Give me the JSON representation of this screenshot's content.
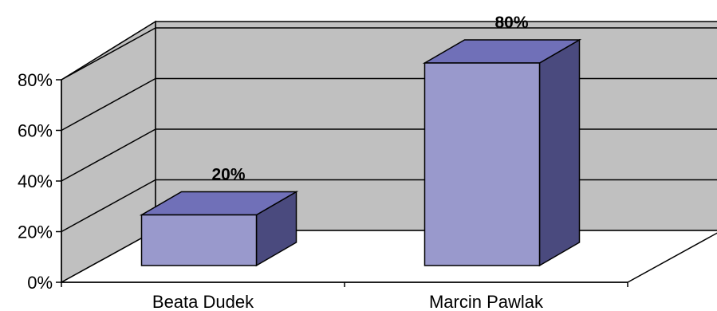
{
  "chart_data": {
    "type": "bar",
    "style": "3d-column",
    "categories": [
      "Beata Dudek",
      "Marcin Pawlak"
    ],
    "values": [
      20,
      80
    ],
    "data_labels": [
      "20%",
      "80%"
    ],
    "y_ticks": [
      0,
      20,
      40,
      60,
      80
    ],
    "y_tick_labels": [
      "0%",
      "20%",
      "40%",
      "60%",
      "80%"
    ],
    "ylim": [
      0,
      80
    ],
    "grid": true,
    "legend": false,
    "colors": {
      "wall": "#c0c0c0",
      "bar_front": "#9999cc",
      "bar_top": "#7070b8",
      "bar_side": "#4a4a7e",
      "grid": "#000000"
    }
  }
}
